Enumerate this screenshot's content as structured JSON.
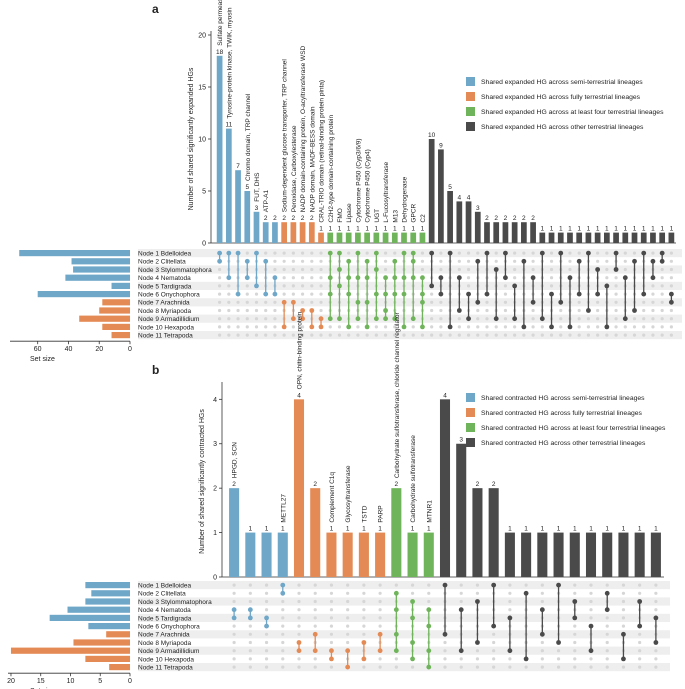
{
  "colors": {
    "semi": "#6fa7c9",
    "fully": "#e48a55",
    "four": "#6fb45a",
    "other": "#4a4a4a",
    "grid": "#eeeeee",
    "dot": "#d6d6d6"
  },
  "nodes": [
    "Node 1 Bdelloidea",
    "Node 2 Clitellata",
    "Node 3 Stylommatophora",
    "Node 4 Nematoda",
    "Node 5 Tardigrada",
    "Node 6 Onychophora",
    "Node 7 Arachnida",
    "Node 8 Myriapoda",
    "Node 9 Armadillidium",
    "Node 10 Hexapoda",
    "Node 11 Tetrapoda"
  ],
  "chart_data": [
    {
      "panel": "a",
      "type": "bar",
      "ylabel": "Number of shared significantly expanded HGs",
      "ylim": [
        0,
        20
      ],
      "yticks": [
        0,
        5,
        10,
        15,
        20
      ],
      "legend": [
        {
          "key": "semi",
          "label": "Shared expanded HG across semi-terrestrial lineages"
        },
        {
          "key": "fully",
          "label": "Shared expanded HG across fully terrestrial lineages"
        },
        {
          "key": "four",
          "label": "Shared expanded HG across at least four terrestrial lineages"
        },
        {
          "key": "other",
          "label": "Shared expanded HG across other terrestrial lineages"
        }
      ],
      "bars": [
        {
          "value": 18,
          "cat": "semi",
          "label": "Sulfate permease, cathepsin B-like cysteine proteinase, SET domain",
          "members": [
            0,
            1
          ]
        },
        {
          "value": 11,
          "cat": "semi",
          "label": "Tyrosine-protein kinase, TWIK, myosin",
          "members": [
            0,
            3
          ]
        },
        {
          "value": 7,
          "cat": "semi",
          "label": "",
          "members": [
            0,
            5
          ]
        },
        {
          "value": 5,
          "cat": "semi",
          "label": "Chromo domain, TRP channel",
          "members": [
            1,
            3
          ]
        },
        {
          "value": 3,
          "cat": "semi",
          "label": "FUT, DHS",
          "members": [
            0,
            4
          ]
        },
        {
          "value": 2,
          "cat": "semi",
          "label": "ATP-A1",
          "members": [
            1,
            5
          ]
        },
        {
          "value": 2,
          "cat": "semi",
          "label": "",
          "members": [
            3,
            5
          ]
        },
        {
          "value": 2,
          "cat": "fully",
          "label": "Sodium-dependent glucose transporter, TRP channel",
          "members": [
            6,
            9
          ]
        },
        {
          "value": 2,
          "cat": "fully",
          "label": "Peroxidase, Carboxylesterase",
          "members": [
            6,
            8
          ]
        },
        {
          "value": 2,
          "cat": "fully",
          "label": "NADP domain-containing protein, O-acyltransferase WSD",
          "members": [
            7,
            8
          ]
        },
        {
          "value": 2,
          "cat": "fully",
          "label": "NADP domain, MADF-BESS domain",
          "members": [
            7,
            9
          ]
        },
        {
          "value": 1,
          "cat": "fully",
          "label": "CRAL-TRIO domain (retinal-binding protein pinta)",
          "members": [
            8,
            9
          ]
        },
        {
          "value": 1,
          "cat": "four",
          "label": "C2H2-type domain-containing protein",
          "members": [
            0,
            3,
            5,
            8
          ]
        },
        {
          "value": 1,
          "cat": "four",
          "label": "FMO",
          "members": [
            0,
            2,
            4,
            8
          ]
        },
        {
          "value": 1,
          "cat": "four",
          "label": "Lipase",
          "members": [
            1,
            3,
            5,
            9
          ]
        },
        {
          "value": 1,
          "cat": "four",
          "label": "Cytochrome P450 (Cyp3/6/9)",
          "members": [
            0,
            3,
            6,
            8
          ]
        },
        {
          "value": 1,
          "cat": "four",
          "label": "Cytochrome P450 (Cyp4)",
          "members": [
            1,
            3,
            6,
            9
          ]
        },
        {
          "value": 1,
          "cat": "four",
          "label": "UGT",
          "members": [
            0,
            2,
            5,
            8
          ]
        },
        {
          "value": 1,
          "cat": "four",
          "label": "L-Fucosyltransferase",
          "members": [
            3,
            5,
            7,
            8
          ]
        },
        {
          "value": 1,
          "cat": "four",
          "label": "M13",
          "members": [
            1,
            3,
            5,
            8
          ]
        },
        {
          "value": 1,
          "cat": "four",
          "label": "Dehydrogenase",
          "members": [
            0,
            3,
            5,
            9
          ]
        },
        {
          "value": 1,
          "cat": "four",
          "label": "GPCR",
          "members": [
            0,
            1,
            3,
            8
          ]
        },
        {
          "value": 1,
          "cat": "four",
          "label": "C2",
          "members": [
            3,
            5,
            6,
            9
          ]
        },
        {
          "value": 10,
          "cat": "other",
          "label": "",
          "members": [
            0,
            4
          ]
        },
        {
          "value": 9,
          "cat": "other",
          "label": "",
          "members": [
            3,
            5
          ]
        },
        {
          "value": 5,
          "cat": "other",
          "label": "",
          "members": [
            0,
            9
          ]
        },
        {
          "value": 4,
          "cat": "other",
          "label": "",
          "members": [
            3,
            7
          ]
        },
        {
          "value": 4,
          "cat": "other",
          "label": "",
          "members": [
            5,
            8
          ]
        },
        {
          "value": 3,
          "cat": "other",
          "label": "",
          "members": [
            1,
            6
          ]
        },
        {
          "value": 2,
          "cat": "other",
          "label": "",
          "members": [
            0,
            5
          ]
        },
        {
          "value": 2,
          "cat": "other",
          "label": "",
          "members": [
            2,
            8
          ]
        },
        {
          "value": 2,
          "cat": "other",
          "label": "",
          "members": [
            0,
            3
          ]
        },
        {
          "value": 2,
          "cat": "other",
          "label": "",
          "members": [
            4,
            8
          ]
        },
        {
          "value": 2,
          "cat": "other",
          "label": "",
          "members": [
            1,
            9
          ]
        },
        {
          "value": 2,
          "cat": "other",
          "label": "",
          "members": [
            3,
            6
          ]
        },
        {
          "value": 1,
          "cat": "other",
          "label": "",
          "members": [
            0,
            8
          ]
        },
        {
          "value": 1,
          "cat": "other",
          "label": "",
          "members": [
            5,
            9
          ]
        },
        {
          "value": 1,
          "cat": "other",
          "label": "",
          "members": [
            0,
            6
          ]
        },
        {
          "value": 1,
          "cat": "other",
          "label": "",
          "members": [
            3,
            9
          ]
        },
        {
          "value": 1,
          "cat": "other",
          "label": "",
          "members": [
            1,
            5
          ]
        },
        {
          "value": 1,
          "cat": "other",
          "label": "",
          "members": [
            0,
            7
          ]
        },
        {
          "value": 1,
          "cat": "other",
          "label": "",
          "members": [
            2,
            5
          ]
        },
        {
          "value": 1,
          "cat": "other",
          "label": "",
          "members": [
            4,
            9
          ]
        },
        {
          "value": 1,
          "cat": "other",
          "label": "",
          "members": [
            0,
            2
          ]
        },
        {
          "value": 1,
          "cat": "other",
          "label": "",
          "members": [
            3,
            8
          ]
        },
        {
          "value": 1,
          "cat": "other",
          "label": "",
          "members": [
            1,
            7
          ]
        },
        {
          "value": 1,
          "cat": "other",
          "label": "",
          "members": [
            0,
            5
          ]
        },
        {
          "value": 1,
          "cat": "other",
          "label": "",
          "members": [
            1,
            3
          ]
        },
        {
          "value": 1,
          "cat": "other",
          "label": "",
          "members": [
            0,
            1
          ]
        },
        {
          "value": 1,
          "cat": "other",
          "label": "",
          "members": [
            5,
            6
          ]
        }
      ],
      "set_size": {
        "xlabel": "Set size",
        "ticks": [
          60,
          40,
          20,
          0
        ],
        "max": 78,
        "values": [
          72,
          38,
          37,
          42,
          12,
          60,
          18,
          20,
          33,
          18,
          12
        ]
      }
    },
    {
      "panel": "b",
      "type": "bar",
      "ylabel": "Number of shared significantly contracted HGs",
      "ylim": [
        0,
        4.3
      ],
      "yticks": [
        0,
        1,
        2,
        3,
        4
      ],
      "legend": [
        {
          "key": "semi",
          "label": "Shared contracted HG across semi-terrestrial lineages"
        },
        {
          "key": "fully",
          "label": "Shared contracted HG across fully terrestrial lineages"
        },
        {
          "key": "four",
          "label": "Shared contracted HG across at least four terrestrial lineages"
        },
        {
          "key": "other",
          "label": "Shared contracted HG across other terrestrial lineages"
        }
      ],
      "bars": [
        {
          "value": 2,
          "cat": "semi",
          "label": "HPGD, SCN",
          "members": [
            3,
            4
          ]
        },
        {
          "value": 1,
          "cat": "semi",
          "label": "",
          "members": [
            3,
            4
          ]
        },
        {
          "value": 1,
          "cat": "semi",
          "label": "",
          "members": [
            4,
            5
          ]
        },
        {
          "value": 1,
          "cat": "semi",
          "label": "METTL27",
          "members": [
            0,
            1
          ]
        },
        {
          "value": 4,
          "cat": "fully",
          "label": "OPN, chitin-binding protein",
          "members": [
            7,
            8
          ]
        },
        {
          "value": 2,
          "cat": "fully",
          "label": "",
          "members": [
            6,
            8
          ]
        },
        {
          "value": 1,
          "cat": "fully",
          "label": "Complement C1q",
          "members": [
            8,
            9
          ]
        },
        {
          "value": 1,
          "cat": "fully",
          "label": "Glycosyltransferase",
          "members": [
            8,
            10
          ]
        },
        {
          "value": 1,
          "cat": "fully",
          "label": "TSTD",
          "members": [
            7,
            9
          ]
        },
        {
          "value": 1,
          "cat": "fully",
          "label": "PARP",
          "members": [
            6,
            8
          ]
        },
        {
          "value": 2,
          "cat": "four",
          "label": "Carbohydrate sulfotransferase, chloride channel regulator",
          "members": [
            1,
            3,
            6,
            8
          ]
        },
        {
          "value": 1,
          "cat": "four",
          "label": "Carbohydrate sulfotransferase",
          "members": [
            2,
            4,
            7,
            9
          ]
        },
        {
          "value": 1,
          "cat": "four",
          "label": "MTNR1",
          "members": [
            3,
            5,
            8,
            10
          ]
        },
        {
          "value": 4,
          "cat": "other",
          "label": "",
          "members": [
            0,
            6
          ]
        },
        {
          "value": 3,
          "cat": "other",
          "label": "",
          "members": [
            3,
            8
          ]
        },
        {
          "value": 2,
          "cat": "other",
          "label": "",
          "members": [
            2,
            7
          ]
        },
        {
          "value": 2,
          "cat": "other",
          "label": "",
          "members": [
            0,
            5
          ]
        },
        {
          "value": 1,
          "cat": "other",
          "label": "",
          "members": [
            4,
            8
          ]
        },
        {
          "value": 1,
          "cat": "other",
          "label": "",
          "members": [
            1,
            9
          ]
        },
        {
          "value": 1,
          "cat": "other",
          "label": "",
          "members": [
            3,
            6
          ]
        },
        {
          "value": 1,
          "cat": "other",
          "label": "",
          "members": [
            0,
            7
          ]
        },
        {
          "value": 1,
          "cat": "other",
          "label": "",
          "members": [
            2,
            4
          ]
        },
        {
          "value": 1,
          "cat": "other",
          "label": "",
          "members": [
            5,
            8
          ]
        },
        {
          "value": 1,
          "cat": "other",
          "label": "",
          "members": [
            1,
            3
          ]
        },
        {
          "value": 1,
          "cat": "other",
          "label": "",
          "members": [
            6,
            9
          ]
        },
        {
          "value": 1,
          "cat": "other",
          "label": "",
          "members": [
            2,
            5
          ]
        },
        {
          "value": 1,
          "cat": "other",
          "label": "",
          "members": [
            4,
            7
          ]
        }
      ],
      "set_size": {
        "xlabel": "Set size",
        "ticks": [
          20,
          15,
          10,
          5,
          0
        ],
        "max": 20.5,
        "values": [
          7.5,
          6.5,
          7.5,
          10.5,
          13.5,
          7,
          4,
          9.5,
          20,
          7.5,
          3.5
        ]
      }
    }
  ]
}
